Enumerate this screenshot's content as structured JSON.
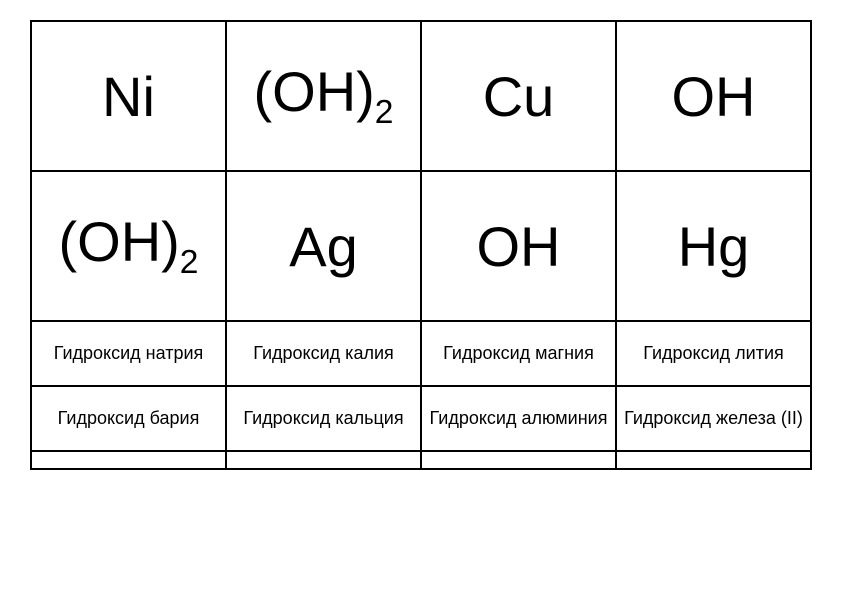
{
  "table": {
    "row1": {
      "c1": "Ni",
      "c2_main": "(OH)",
      "c2_sub": "2",
      "c3": "Cu",
      "c4": "OH"
    },
    "row2": {
      "c1_main": "(OH)",
      "c1_sub": "2",
      "c2": "Ag",
      "c3": "OH",
      "c4": "Hg"
    },
    "row3": {
      "c1": "Гидроксид натрия",
      "c2": "Гидроксид калия",
      "c3": "Гидроксид магния",
      "c4": "Гидроксид лития"
    },
    "row4": {
      "c1": "Гидроксид бария",
      "c2": "Гидроксид кальция",
      "c3": "Гидроксид алюминия",
      "c4": "Гидроксид железа (II)"
    }
  },
  "styling": {
    "border_color": "#000000",
    "border_width": "2px",
    "background_color": "#ffffff",
    "large_font_size": 56,
    "small_font_size": 18,
    "large_row_height": 150,
    "small_row_height": 65,
    "font_family": "Arial"
  }
}
